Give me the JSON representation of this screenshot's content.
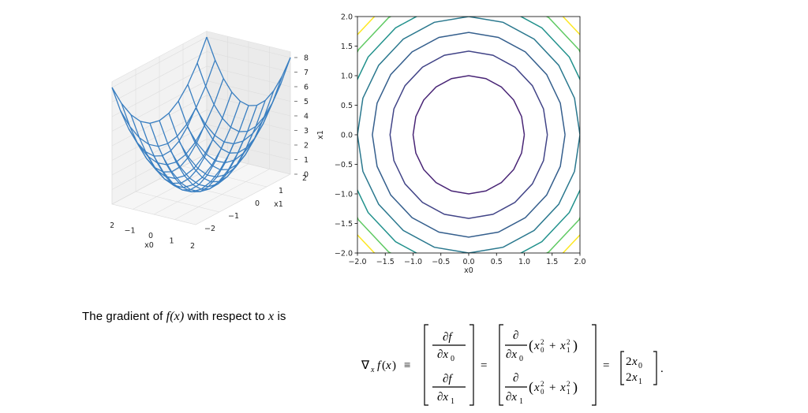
{
  "figure_3d": {
    "z_ticks": [
      "0",
      "1",
      "2",
      "3",
      "4",
      "5",
      "6",
      "7",
      "8"
    ],
    "x_ticks": [
      "−2",
      "−1",
      "0",
      "1",
      "2"
    ],
    "y_ticks": [
      "−2",
      "−1",
      "0",
      "1",
      "2"
    ],
    "xlabel": "x0",
    "ylabel": "x1",
    "line_color": "#3a7fc1"
  },
  "chart_data": {
    "type": "contour",
    "function": "x0^2 + x1^2",
    "xlim": [
      -2.0,
      2.0
    ],
    "ylim": [
      -2.0,
      2.0
    ],
    "xlabel": "x0",
    "ylabel": "x1",
    "x_ticks": [
      "−2.0",
      "−1.5",
      "−1.0",
      "−0.5",
      "0.0",
      "0.5",
      "1.0",
      "1.5",
      "2.0"
    ],
    "y_ticks": [
      "−2.0",
      "−1.5",
      "−1.0",
      "−0.5",
      "0.0",
      "0.5",
      "1.0",
      "1.5",
      "2.0"
    ],
    "levels": [
      1,
      2,
      3,
      4,
      5,
      6,
      7
    ],
    "level_colors": [
      "#482475",
      "#414487",
      "#355f8d",
      "#2a788e",
      "#21918c",
      "#5ec962",
      "#fde725"
    ],
    "grid": false
  },
  "text": {
    "intro_before": "The gradient of ",
    "intro_func": "f(x)",
    "intro_mid": " with respect to ",
    "intro_var": "x",
    "intro_after": " is"
  },
  "equation": {
    "lhs": "∇x f(x) ≡",
    "partial_f_dx0": "∂f / ∂x0",
    "partial_f_dx1": "∂f / ∂x1",
    "expanded_top": "∂/∂x0 (x0² + x1²)",
    "expanded_bottom": "∂/∂x1 (x0² + x1²)",
    "result_top": "2x0",
    "result_bottom": "2x1"
  }
}
